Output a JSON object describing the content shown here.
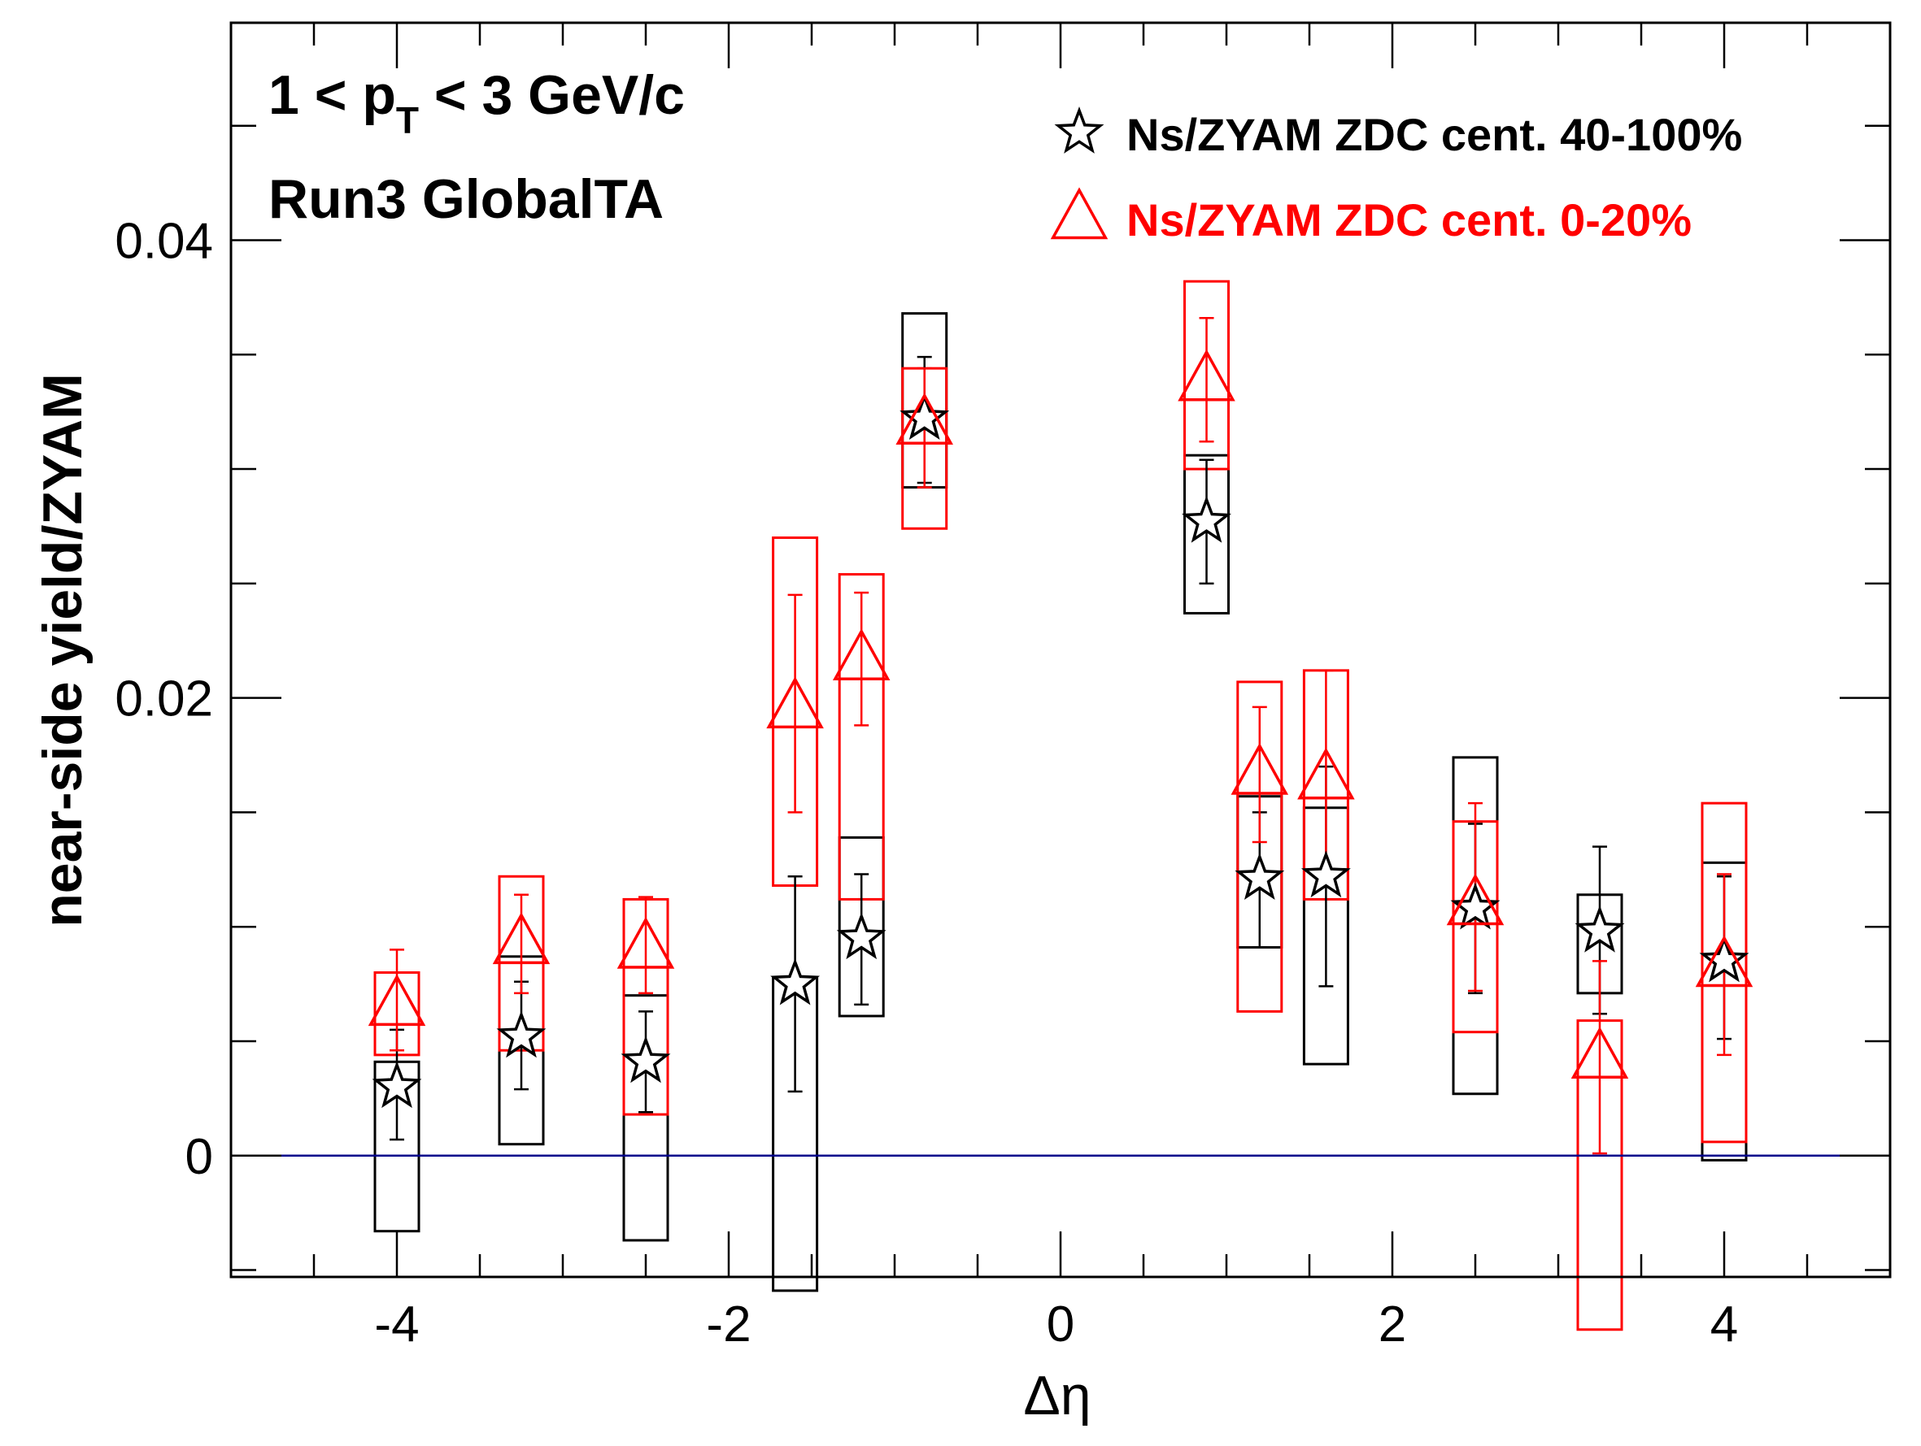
{
  "chart_data": {
    "type": "scatter",
    "xlabel": "Δη",
    "ylabel": "near-side yield/ZYAM",
    "annotations": {
      "pt_prefix": "1 < p",
      "pt_sub": "T",
      "pt_suffix": " < 3 GeV/c",
      "run": "Run3 GlobalTA"
    },
    "xlim": [
      -5.0,
      5.0
    ],
    "ylim": [
      -0.0053,
      0.0495
    ],
    "x_ticks": [
      -4,
      -2,
      0,
      2,
      4
    ],
    "x_tick_labels": [
      "-4",
      "-2",
      "0",
      "2",
      "4"
    ],
    "y_ticks": [
      0,
      0.02,
      0.04
    ],
    "y_tick_labels": [
      "0",
      "0.02",
      "0.04"
    ],
    "grid": false,
    "legend_position": "top-right",
    "reference_line": {
      "y": 0,
      "x_range": [
        -4.75,
        4.75
      ],
      "color": "#00008b"
    },
    "series": [
      {
        "name": "Ns/ZYAM ZDC cent. 40-100%",
        "color": "#000000",
        "marker": "star",
        "points": [
          {
            "x": -4.0,
            "y": 0.003,
            "stat_lo": 0.0007,
            "stat_hi": 0.0055,
            "sys_lo": -0.0033,
            "sys_hi": 0.0041
          },
          {
            "x": -3.25,
            "y": 0.0052,
            "stat_lo": 0.0029,
            "stat_hi": 0.0076,
            "sys_lo": 0.0005,
            "sys_hi": 0.0087
          },
          {
            "x": -2.5,
            "y": 0.0041,
            "stat_lo": 0.0019,
            "stat_hi": 0.0063,
            "sys_lo": -0.0037,
            "sys_hi": 0.007
          },
          {
            "x": -1.6,
            "y": 0.0075,
            "stat_lo": 0.0028,
            "stat_hi": 0.0122,
            "sys_lo": -0.0059,
            "sys_hi": 0.0078
          },
          {
            "x": -1.2,
            "y": 0.0095,
            "stat_lo": 0.0066,
            "stat_hi": 0.0123,
            "sys_lo": 0.0061,
            "sys_hi": 0.0139
          },
          {
            "x": -0.82,
            "y": 0.0322,
            "stat_lo": 0.0294,
            "stat_hi": 0.0349,
            "sys_lo": 0.0292,
            "sys_hi": 0.0368
          },
          {
            "x": 0.88,
            "y": 0.0277,
            "stat_lo": 0.025,
            "stat_hi": 0.0304,
            "sys_lo": 0.0237,
            "sys_hi": 0.0306
          },
          {
            "x": 1.2,
            "y": 0.0121,
            "stat_lo": 0.0091,
            "stat_hi": 0.015,
            "sys_lo": 0.0091,
            "sys_hi": 0.0157
          },
          {
            "x": 1.6,
            "y": 0.0122,
            "stat_lo": 0.0074,
            "stat_hi": 0.017,
            "sys_lo": 0.004,
            "sys_hi": 0.0152
          },
          {
            "x": 2.5,
            "y": 0.0108,
            "stat_lo": 0.0071,
            "stat_hi": 0.0145,
            "sys_lo": 0.0027,
            "sys_hi": 0.0174
          },
          {
            "x": 3.25,
            "y": 0.0098,
            "stat_lo": 0.0062,
            "stat_hi": 0.0135,
            "sys_lo": 0.0071,
            "sys_hi": 0.0114
          },
          {
            "x": 4.0,
            "y": 0.0085,
            "stat_lo": 0.0051,
            "stat_hi": 0.0122,
            "sys_lo": -0.0002,
            "sys_hi": 0.0128
          }
        ]
      },
      {
        "name": "Ns/ZYAM ZDC cent. 0-20%",
        "color": "#ff0000",
        "marker": "triangle",
        "points": [
          {
            "x": -4.0,
            "y": 0.0066,
            "stat_lo": 0.0046,
            "stat_hi": 0.009,
            "sys_lo": 0.0044,
            "sys_hi": 0.008
          },
          {
            "x": -3.25,
            "y": 0.0093,
            "stat_lo": 0.0071,
            "stat_hi": 0.0114,
            "sys_lo": 0.0046,
            "sys_hi": 0.0122
          },
          {
            "x": -2.5,
            "y": 0.0091,
            "stat_lo": 0.0071,
            "stat_hi": 0.0113,
            "sys_lo": 0.0018,
            "sys_hi": 0.0112
          },
          {
            "x": -1.6,
            "y": 0.0196,
            "stat_lo": 0.015,
            "stat_hi": 0.0245,
            "sys_lo": 0.0118,
            "sys_hi": 0.027
          },
          {
            "x": -1.2,
            "y": 0.0217,
            "stat_lo": 0.0188,
            "stat_hi": 0.0246,
            "sys_lo": 0.0112,
            "sys_hi": 0.0254
          },
          {
            "x": -0.82,
            "y": 0.032,
            "stat_lo": 0.0292,
            "stat_hi": 0.0344,
            "sys_lo": 0.0274,
            "sys_hi": 0.0344
          },
          {
            "x": 0.88,
            "y": 0.0339,
            "stat_lo": 0.0312,
            "stat_hi": 0.0366,
            "sys_lo": 0.03,
            "sys_hi": 0.0382
          },
          {
            "x": 1.2,
            "y": 0.0167,
            "stat_lo": 0.0137,
            "stat_hi": 0.0196,
            "sys_lo": 0.0063,
            "sys_hi": 0.0207
          },
          {
            "x": 1.6,
            "y": 0.0165,
            "stat_lo": 0.0118,
            "stat_hi": 0.0212,
            "sys_lo": 0.0112,
            "sys_hi": 0.0212
          },
          {
            "x": 2.5,
            "y": 0.011,
            "stat_lo": 0.0072,
            "stat_hi": 0.0154,
            "sys_lo": 0.0054,
            "sys_hi": 0.0146
          },
          {
            "x": 3.25,
            "y": 0.0043,
            "stat_lo": 0.0001,
            "stat_hi": 0.0085,
            "sys_lo": -0.0076,
            "sys_hi": 0.0059
          },
          {
            "x": 4.0,
            "y": 0.0083,
            "stat_lo": 0.0044,
            "stat_hi": 0.0123,
            "sys_lo": 0.0006,
            "sys_hi": 0.0154
          }
        ]
      }
    ]
  }
}
